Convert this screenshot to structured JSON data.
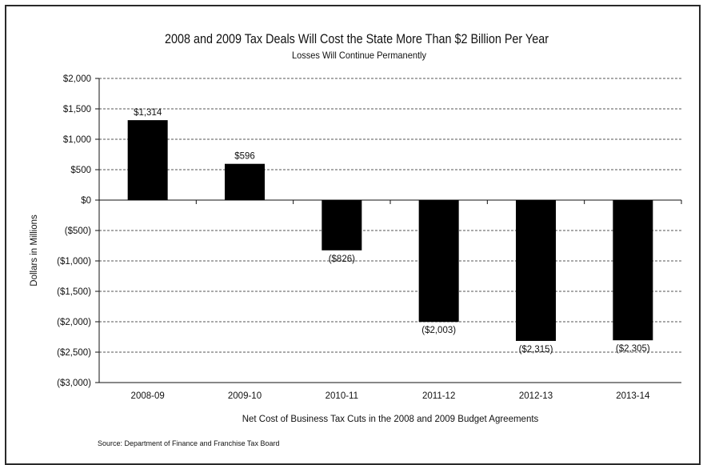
{
  "chart_data": {
    "type": "bar",
    "title": "2008 and 2009 Tax Deals Will Cost the State More Than $2 Billion Per Year",
    "subtitle": "Losses Will Continue Permanently",
    "xlabel": "Net Cost of Business Tax Cuts in the 2008 and 2009 Budget Agreements",
    "ylabel": "Dollars in Millions",
    "categories": [
      "2008-09",
      "2009-10",
      "2010-11",
      "2011-12",
      "2012-13",
      "2013-14"
    ],
    "values": [
      1314,
      596,
      -826,
      -2003,
      -2315,
      -2305
    ],
    "data_labels": [
      "$1,314",
      "$596",
      "($826)",
      "($2,003)",
      "($2,315)",
      "($2,305)"
    ],
    "ylim": [
      -3000,
      2000
    ],
    "y_ticks": [
      2000,
      1500,
      1000,
      500,
      0,
      -500,
      -1000,
      -1500,
      -2000,
      -2500,
      -3000
    ],
    "y_tick_labels": [
      "$2,000",
      "$1,500",
      "$1,000",
      "$500",
      "$0",
      "($500)",
      "($1,000)",
      "($1,500)",
      "($2,000)",
      "($2,500)",
      "($3,000)"
    ],
    "grid": "horizontal-dashed",
    "bar_color": "#000000",
    "source": "Source: Department of Finance and Franchise Tax Board"
  }
}
